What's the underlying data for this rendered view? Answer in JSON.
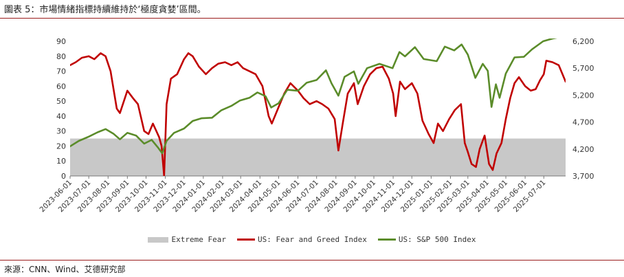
{
  "page": {
    "title": "圖表 5：市場情緒指標持續維持於‘極度貪婪’區間。",
    "source": "來源：CNN、Wind、艾德研究部"
  },
  "chart_data": {
    "type": "line",
    "title": "",
    "y_left": {
      "min": 0,
      "max": 90,
      "ticks": [
        0,
        10,
        20,
        30,
        40,
        50,
        60,
        70,
        80,
        90
      ]
    },
    "y_right": {
      "min": 3700,
      "max": 6200,
      "ticks": [
        "3,700",
        "4,200",
        "4,700",
        "5,200",
        "5,700",
        "6,200"
      ]
    },
    "x_start": "2023-06-01",
    "x_end": "2025-08-05",
    "x_ticks": [
      "2023-06-01",
      "2023-07-01",
      "2023-08-01",
      "2023-09-01",
      "2023-10-01",
      "2023-11-01",
      "2023-12-01",
      "2024-01-01",
      "2024-02-01",
      "2024-03-01",
      "2024-04-01",
      "2024-05-01",
      "2024-06-01",
      "2024-07-01",
      "2024-08-01",
      "2024-09-01",
      "2024-10-01",
      "2024-11-01",
      "2024-12-01",
      "2025-01-01",
      "2025-02-01",
      "2025-03-01",
      "2025-04-01",
      "2025-05-01",
      "2025-06-01",
      "2025-07-01"
    ],
    "band": {
      "name": "Extreme Fear",
      "from": 0,
      "to": 25,
      "color": "#c8c8c8"
    },
    "series": [
      {
        "name": "US: Fear and Greed Index",
        "axis": "left",
        "color": "#c00000",
        "points": [
          [
            "2023-06-01",
            74
          ],
          [
            "2023-06-10",
            76
          ],
          [
            "2023-06-20",
            79
          ],
          [
            "2023-07-01",
            80
          ],
          [
            "2023-07-10",
            78
          ],
          [
            "2023-07-20",
            82
          ],
          [
            "2023-07-28",
            80
          ],
          [
            "2023-08-05",
            70
          ],
          [
            "2023-08-15",
            45
          ],
          [
            "2023-08-20",
            42
          ],
          [
            "2023-08-28",
            52
          ],
          [
            "2023-09-01",
            57
          ],
          [
            "2023-09-10",
            52
          ],
          [
            "2023-09-18",
            48
          ],
          [
            "2023-09-28",
            30
          ],
          [
            "2023-10-05",
            28
          ],
          [
            "2023-10-12",
            35
          ],
          [
            "2023-10-22",
            26
          ],
          [
            "2023-10-26",
            20
          ],
          [
            "2023-10-30",
            0
          ],
          [
            "2023-11-03",
            48
          ],
          [
            "2023-11-10",
            65
          ],
          [
            "2023-11-20",
            68
          ],
          [
            "2023-12-01",
            78
          ],
          [
            "2023-12-08",
            82
          ],
          [
            "2023-12-15",
            80
          ],
          [
            "2023-12-25",
            73
          ],
          [
            "2024-01-05",
            68
          ],
          [
            "2024-01-15",
            72
          ],
          [
            "2024-01-25",
            75
          ],
          [
            "2024-02-05",
            76
          ],
          [
            "2024-02-15",
            74
          ],
          [
            "2024-02-25",
            76
          ],
          [
            "2024-03-05",
            72
          ],
          [
            "2024-03-15",
            70
          ],
          [
            "2024-03-25",
            68
          ],
          [
            "2024-04-05",
            60
          ],
          [
            "2024-04-15",
            40
          ],
          [
            "2024-04-20",
            35
          ],
          [
            "2024-04-30",
            45
          ],
          [
            "2024-05-10",
            55
          ],
          [
            "2024-05-20",
            62
          ],
          [
            "2024-06-01",
            57
          ],
          [
            "2024-06-10",
            52
          ],
          [
            "2024-06-20",
            48
          ],
          [
            "2024-07-01",
            50
          ],
          [
            "2024-07-10",
            48
          ],
          [
            "2024-07-20",
            45
          ],
          [
            "2024-07-30",
            38
          ],
          [
            "2024-08-05",
            17
          ],
          [
            "2024-08-12",
            35
          ],
          [
            "2024-08-20",
            55
          ],
          [
            "2024-08-30",
            62
          ],
          [
            "2024-09-05",
            48
          ],
          [
            "2024-09-15",
            60
          ],
          [
            "2024-09-25",
            68
          ],
          [
            "2024-10-05",
            72
          ],
          [
            "2024-10-15",
            73
          ],
          [
            "2024-10-25",
            65
          ],
          [
            "2024-11-01",
            55
          ],
          [
            "2024-11-05",
            40
          ],
          [
            "2024-11-12",
            63
          ],
          [
            "2024-11-20",
            58
          ],
          [
            "2024-12-01",
            62
          ],
          [
            "2024-12-10",
            55
          ],
          [
            "2024-12-18",
            37
          ],
          [
            "2024-12-28",
            28
          ],
          [
            "2025-01-05",
            22
          ],
          [
            "2025-01-12",
            35
          ],
          [
            "2025-01-20",
            30
          ],
          [
            "2025-01-30",
            38
          ],
          [
            "2025-02-08",
            44
          ],
          [
            "2025-02-18",
            48
          ],
          [
            "2025-02-24",
            22
          ],
          [
            "2025-03-01",
            16
          ],
          [
            "2025-03-07",
            8
          ],
          [
            "2025-03-14",
            6
          ],
          [
            "2025-03-20",
            18
          ],
          [
            "2025-03-28",
            27
          ],
          [
            "2025-04-04",
            8
          ],
          [
            "2025-04-10",
            4
          ],
          [
            "2025-04-16",
            15
          ],
          [
            "2025-04-24",
            22
          ],
          [
            "2025-05-01",
            38
          ],
          [
            "2025-05-08",
            52
          ],
          [
            "2025-05-15",
            62
          ],
          [
            "2025-05-22",
            66
          ],
          [
            "2025-06-01",
            60
          ],
          [
            "2025-06-10",
            57
          ],
          [
            "2025-06-18",
            58
          ],
          [
            "2025-06-25",
            64
          ],
          [
            "2025-07-01",
            68
          ],
          [
            "2025-07-05",
            77
          ],
          [
            "2025-07-15",
            76
          ],
          [
            "2025-07-25",
            74
          ],
          [
            "2025-08-05",
            63
          ]
        ]
      },
      {
        "name": "US: S&P 500 Index",
        "axis": "right",
        "color": "#5b8c2a",
        "points": [
          [
            "2023-06-01",
            4250
          ],
          [
            "2023-06-15",
            4350
          ],
          [
            "2023-07-01",
            4430
          ],
          [
            "2023-07-15",
            4510
          ],
          [
            "2023-07-28",
            4570
          ],
          [
            "2023-08-10",
            4480
          ],
          [
            "2023-08-20",
            4380
          ],
          [
            "2023-09-01",
            4500
          ],
          [
            "2023-09-15",
            4450
          ],
          [
            "2023-09-28",
            4300
          ],
          [
            "2023-10-10",
            4370
          ],
          [
            "2023-10-20",
            4230
          ],
          [
            "2023-10-27",
            4120
          ],
          [
            "2023-11-03",
            4350
          ],
          [
            "2023-11-15",
            4500
          ],
          [
            "2023-12-01",
            4580
          ],
          [
            "2023-12-15",
            4720
          ],
          [
            "2023-12-29",
            4770
          ],
          [
            "2024-01-15",
            4780
          ],
          [
            "2024-01-30",
            4920
          ],
          [
            "2024-02-15",
            5000
          ],
          [
            "2024-02-29",
            5100
          ],
          [
            "2024-03-15",
            5150
          ],
          [
            "2024-03-28",
            5250
          ],
          [
            "2024-04-10",
            5180
          ],
          [
            "2024-04-19",
            4970
          ],
          [
            "2024-05-01",
            5050
          ],
          [
            "2024-05-15",
            5300
          ],
          [
            "2024-06-01",
            5280
          ],
          [
            "2024-06-15",
            5430
          ],
          [
            "2024-07-01",
            5480
          ],
          [
            "2024-07-16",
            5660
          ],
          [
            "2024-07-25",
            5420
          ],
          [
            "2024-08-05",
            5190
          ],
          [
            "2024-08-15",
            5540
          ],
          [
            "2024-08-30",
            5640
          ],
          [
            "2024-09-06",
            5410
          ],
          [
            "2024-09-20",
            5700
          ],
          [
            "2024-10-10",
            5780
          ],
          [
            "2024-10-31",
            5700
          ],
          [
            "2024-11-11",
            6000
          ],
          [
            "2024-11-20",
            5920
          ],
          [
            "2024-12-06",
            6090
          ],
          [
            "2024-12-20",
            5870
          ],
          [
            "2025-01-10",
            5830
          ],
          [
            "2025-01-23",
            6100
          ],
          [
            "2025-02-07",
            6030
          ],
          [
            "2025-02-19",
            6140
          ],
          [
            "2025-03-01",
            5950
          ],
          [
            "2025-03-13",
            5520
          ],
          [
            "2025-03-25",
            5780
          ],
          [
            "2025-04-02",
            5650
          ],
          [
            "2025-04-08",
            4980
          ],
          [
            "2025-04-15",
            5400
          ],
          [
            "2025-04-21",
            5150
          ],
          [
            "2025-05-01",
            5600
          ],
          [
            "2025-05-15",
            5900
          ],
          [
            "2025-05-30",
            5910
          ],
          [
            "2025-06-12",
            6050
          ],
          [
            "2025-06-30",
            6200
          ],
          [
            "2025-07-15",
            6250
          ],
          [
            "2025-08-05",
            6300
          ]
        ]
      }
    ]
  }
}
